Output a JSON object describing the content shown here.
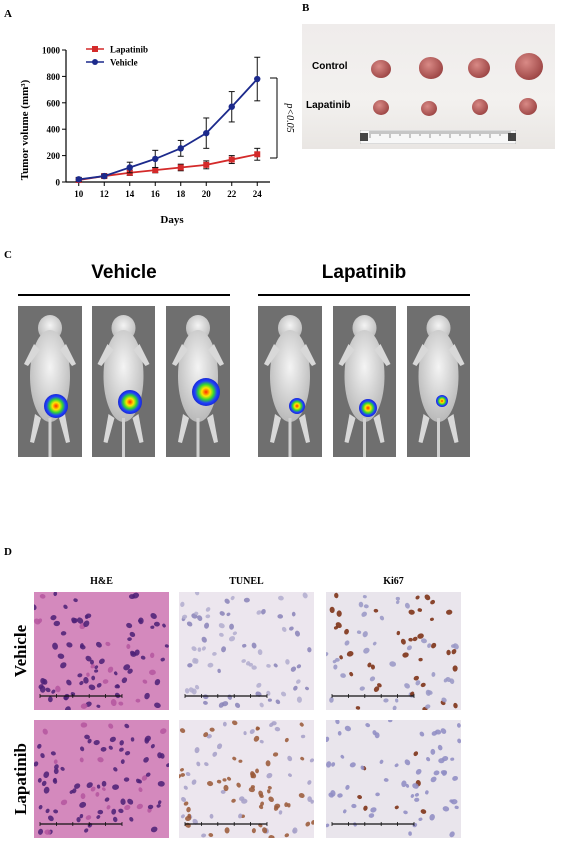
{
  "panels": {
    "a": "A",
    "b": "B",
    "c": "C",
    "d": "D"
  },
  "chart_data": {
    "type": "line",
    "ylabel": "Tumor volume (mm³)",
    "xlabel": "Days",
    "x": [
      10,
      12,
      14,
      16,
      18,
      20,
      22,
      24
    ],
    "xlim": [
      9,
      25
    ],
    "ylim": [
      0,
      1000
    ],
    "yticks": [
      0,
      200,
      400,
      600,
      800,
      1000
    ],
    "series": [
      {
        "name": "Lapatinib",
        "color": "#d42a2a",
        "marker": "square",
        "values": [
          15,
          45,
          70,
          90,
          110,
          130,
          170,
          210
        ],
        "errors": [
          10,
          12,
          20,
          20,
          25,
          30,
          30,
          45
        ]
      },
      {
        "name": "Vehicle",
        "color": "#1c2a8c",
        "marker": "circle",
        "values": [
          20,
          45,
          110,
          175,
          255,
          370,
          570,
          780
        ],
        "errors": [
          15,
          15,
          40,
          65,
          60,
          115,
          115,
          165
        ]
      }
    ],
    "annotation": "p<0.05",
    "legend": "top-left"
  },
  "tumor_photo": {
    "row1_label": "Control",
    "row2_label": "Lapatinib"
  },
  "imaging": {
    "group1": "Vehicle",
    "group2": "Lapatinib"
  },
  "histology": {
    "columns": [
      "H&E",
      "TUNEL",
      "Ki67"
    ],
    "rows": [
      "Vehicle",
      "Lapatinib"
    ]
  }
}
